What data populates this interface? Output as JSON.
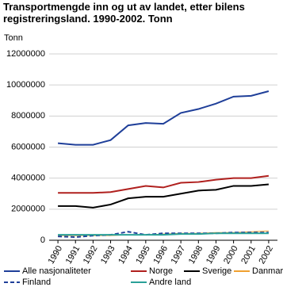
{
  "chart_data": {
    "type": "line",
    "title": "Transportmengde inn og ut av landet, etter bilens registreringsland. 1990-2002. Tonn",
    "y_label": "Tonn",
    "categories": [
      "1990",
      "1991",
      "1992",
      "1993",
      "1994",
      "1995",
      "1996",
      "1997",
      "1998",
      "1999",
      "2000",
      "2001",
      "2002"
    ],
    "series": [
      {
        "name": "Alle nasjonaliteter",
        "color": "#1f3f99",
        "style": "solid",
        "values": [
          6250000,
          6150000,
          6150000,
          6450000,
          7400000,
          7550000,
          7500000,
          8200000,
          8450000,
          8800000,
          9250000,
          9300000,
          9600000
        ]
      },
      {
        "name": "Norge",
        "color": "#b0201e",
        "style": "solid",
        "values": [
          3050000,
          3050000,
          3050000,
          3100000,
          3300000,
          3500000,
          3400000,
          3700000,
          3750000,
          3900000,
          4000000,
          4000000,
          4150000
        ]
      },
      {
        "name": "Sverige",
        "color": "#000000",
        "style": "solid",
        "values": [
          2200000,
          2200000,
          2100000,
          2300000,
          2700000,
          2800000,
          2800000,
          3000000,
          3200000,
          3250000,
          3500000,
          3500000,
          3600000
        ]
      },
      {
        "name": "Danmark",
        "color": "#f0a030",
        "style": "solid",
        "values": [
          300000,
          300000,
          300000,
          300000,
          350000,
          350000,
          400000,
          450000,
          450000,
          500000,
          500000,
          550000,
          600000
        ]
      },
      {
        "name": "Finland",
        "color": "#1f3f99",
        "style": "dashed",
        "values": [
          250000,
          200000,
          300000,
          350000,
          550000,
          350000,
          450000,
          450000,
          450000,
          450000,
          500000,
          500000,
          500000
        ]
      },
      {
        "name": "Andre land",
        "color": "#2aa198",
        "style": "solid",
        "values": [
          350000,
          350000,
          350000,
          350000,
          350000,
          350000,
          350000,
          400000,
          400000,
          450000,
          450000,
          450000,
          450000
        ]
      }
    ],
    "ylim": [
      0,
      12000000
    ],
    "yticks": [
      0,
      2000000,
      4000000,
      6000000,
      8000000,
      10000000,
      12000000
    ],
    "grid": true
  }
}
